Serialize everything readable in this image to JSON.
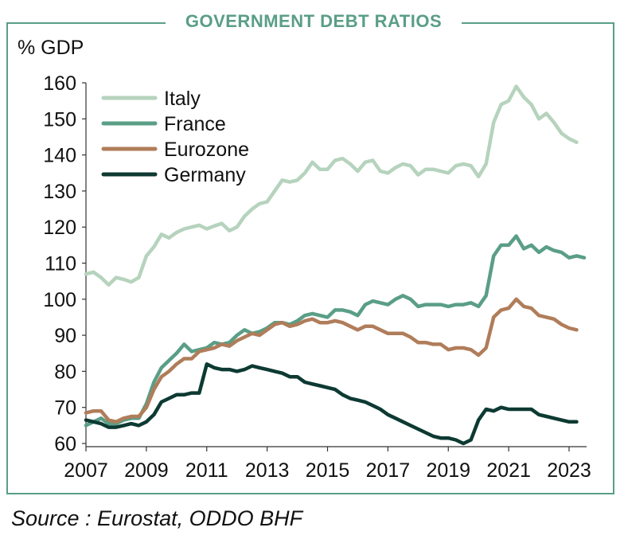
{
  "chart_data": {
    "type": "line",
    "title": "GOVERNMENT DEBT RATIOS",
    "ylabel": "% GDP",
    "xlabel": "",
    "xlim": [
      2007,
      2023.8
    ],
    "ylim": [
      60,
      160
    ],
    "yticks": [
      "160",
      "150",
      "140",
      "130",
      "120",
      "110",
      "100",
      "90",
      "80",
      "70",
      "60"
    ],
    "xticks": [
      "2007",
      "2009",
      "2011",
      "2013",
      "2015",
      "2017",
      "2019",
      "2021",
      "2023"
    ],
    "legend_position": "top-left",
    "series": [
      {
        "name": "Italy",
        "color": "#b6d3bd",
        "x": [
          2007.0,
          2007.25,
          2007.5,
          2007.75,
          2008.0,
          2008.25,
          2008.5,
          2008.75,
          2009.0,
          2009.25,
          2009.5,
          2009.75,
          2010.0,
          2010.25,
          2010.5,
          2010.75,
          2011.0,
          2011.25,
          2011.5,
          2011.75,
          2012.0,
          2012.25,
          2012.5,
          2012.75,
          2013.0,
          2013.25,
          2013.5,
          2013.75,
          2014.0,
          2014.25,
          2014.5,
          2014.75,
          2015.0,
          2015.25,
          2015.5,
          2015.75,
          2016.0,
          2016.25,
          2016.5,
          2016.75,
          2017.0,
          2017.25,
          2017.5,
          2017.75,
          2018.0,
          2018.25,
          2018.5,
          2018.75,
          2019.0,
          2019.25,
          2019.5,
          2019.75,
          2020.0,
          2020.25,
          2020.5,
          2020.75,
          2021.0,
          2021.25,
          2021.5,
          2021.75,
          2022.0,
          2022.25,
          2022.5,
          2022.75,
          2023.0,
          2023.25
        ],
        "values": [
          107,
          107.5,
          106,
          104,
          106,
          105.5,
          104.8,
          106,
          112,
          114.5,
          118,
          117,
          118.5,
          119.5,
          120,
          120.5,
          119.5,
          120.3,
          121,
          119,
          120,
          123,
          125,
          126.5,
          127,
          130,
          133,
          132.5,
          133,
          135,
          138,
          136,
          136,
          138.5,
          139,
          137.5,
          135.5,
          138,
          138.5,
          135.5,
          135,
          136.5,
          137.5,
          137,
          134.5,
          136,
          136,
          135.5,
          135,
          137,
          137.5,
          137,
          134,
          137.5,
          149,
          154,
          155,
          159,
          156,
          154,
          150,
          151.5,
          149,
          146,
          144.5,
          143.5
        ]
      },
      {
        "name": "France",
        "color": "#5a9e86",
        "x": [
          2007.0,
          2007.25,
          2007.5,
          2007.75,
          2008.0,
          2008.25,
          2008.5,
          2008.75,
          2009.0,
          2009.25,
          2009.5,
          2009.75,
          2010.0,
          2010.25,
          2010.5,
          2010.75,
          2011.0,
          2011.25,
          2011.5,
          2011.75,
          2012.0,
          2012.25,
          2012.5,
          2012.75,
          2013.0,
          2013.25,
          2013.5,
          2013.75,
          2014.0,
          2014.25,
          2014.5,
          2014.75,
          2015.0,
          2015.25,
          2015.5,
          2015.75,
          2016.0,
          2016.25,
          2016.5,
          2016.75,
          2017.0,
          2017.25,
          2017.5,
          2017.75,
          2018.0,
          2018.25,
          2018.5,
          2018.75,
          2019.0,
          2019.25,
          2019.5,
          2019.75,
          2020.0,
          2020.25,
          2020.5,
          2020.75,
          2021.0,
          2021.25,
          2021.5,
          2021.75,
          2022.0,
          2022.25,
          2022.5,
          2022.75,
          2023.0,
          2023.25,
          2023.5
        ],
        "values": [
          65,
          66,
          67,
          65.5,
          65.5,
          66.5,
          67,
          67,
          71,
          77,
          81,
          83,
          85,
          87.5,
          85.5,
          86,
          86.5,
          88,
          87.5,
          88,
          90,
          91.5,
          90.5,
          91,
          92,
          93.5,
          93.5,
          93,
          94,
          95.5,
          96,
          95.5,
          95,
          97,
          97,
          96.5,
          95.5,
          98.5,
          99.5,
          99,
          98.5,
          100,
          101,
          100,
          98,
          98.5,
          98.5,
          98.5,
          98,
          98.5,
          98.5,
          99,
          98,
          101,
          112,
          115,
          115,
          117.5,
          114,
          115,
          113,
          114.5,
          113.5,
          113,
          111.5,
          112,
          111.5
        ]
      },
      {
        "name": "Eurozone",
        "color": "#b07d5a",
        "x": [
          2007.0,
          2007.25,
          2007.5,
          2007.75,
          2008.0,
          2008.25,
          2008.5,
          2008.75,
          2009.0,
          2009.25,
          2009.5,
          2009.75,
          2010.0,
          2010.25,
          2010.5,
          2010.75,
          2011.0,
          2011.25,
          2011.5,
          2011.75,
          2012.0,
          2012.25,
          2012.5,
          2012.75,
          2013.0,
          2013.25,
          2013.5,
          2013.75,
          2014.0,
          2014.25,
          2014.5,
          2014.75,
          2015.0,
          2015.25,
          2015.5,
          2015.75,
          2016.0,
          2016.25,
          2016.5,
          2016.75,
          2017.0,
          2017.25,
          2017.5,
          2017.75,
          2018.0,
          2018.25,
          2018.5,
          2018.75,
          2019.0,
          2019.25,
          2019.5,
          2019.75,
          2020.0,
          2020.25,
          2020.5,
          2020.75,
          2021.0,
          2021.25,
          2021.5,
          2021.75,
          2022.0,
          2022.25,
          2022.5,
          2022.75,
          2023.0,
          2023.25
        ],
        "values": [
          68.5,
          69,
          69,
          66.5,
          66,
          67,
          67.5,
          67.5,
          70,
          75,
          78.5,
          80,
          82,
          83.5,
          83.5,
          85.5,
          86,
          86.5,
          87.5,
          87,
          88.5,
          89.5,
          90.5,
          90,
          91.5,
          93,
          93.5,
          92.5,
          93,
          94,
          94.5,
          93.5,
          93.5,
          94,
          93.5,
          92.5,
          91.5,
          92.5,
          92.5,
          91.5,
          90.5,
          90.5,
          90.5,
          89.5,
          88,
          88,
          87.5,
          87.5,
          86,
          86.5,
          86.5,
          86,
          84.5,
          86.5,
          95,
          97,
          97.5,
          100,
          98,
          97.5,
          95.5,
          95,
          94.5,
          93,
          92,
          91.5
        ]
      },
      {
        "name": "Germany",
        "color": "#0d3a33",
        "x": [
          2007.0,
          2007.25,
          2007.5,
          2007.75,
          2008.0,
          2008.25,
          2008.5,
          2008.75,
          2009.0,
          2009.25,
          2009.5,
          2009.75,
          2010.0,
          2010.25,
          2010.5,
          2010.75,
          2011.0,
          2011.25,
          2011.5,
          2011.75,
          2012.0,
          2012.25,
          2012.5,
          2012.75,
          2013.0,
          2013.25,
          2013.5,
          2013.75,
          2014.0,
          2014.25,
          2014.5,
          2014.75,
          2015.0,
          2015.25,
          2015.5,
          2015.75,
          2016.0,
          2016.25,
          2016.5,
          2016.75,
          2017.0,
          2017.25,
          2017.5,
          2017.75,
          2018.0,
          2018.25,
          2018.5,
          2018.75,
          2019.0,
          2019.25,
          2019.5,
          2019.75,
          2020.0,
          2020.25,
          2020.5,
          2020.75,
          2021.0,
          2021.25,
          2021.5,
          2021.75,
          2022.0,
          2022.25,
          2022.5,
          2022.75,
          2023.0,
          2023.25
        ],
        "values": [
          66.5,
          66,
          65.5,
          64.5,
          64.5,
          65,
          65.5,
          65,
          66,
          68,
          71.5,
          72.5,
          73.5,
          73.5,
          74,
          74,
          82,
          81,
          80.5,
          80.5,
          80,
          80.5,
          81.5,
          81,
          80.5,
          80,
          79.5,
          78.5,
          78.5,
          77,
          76.5,
          76,
          75.5,
          75,
          73.5,
          72.5,
          72,
          71.5,
          70.5,
          69.5,
          68,
          67,
          66,
          65,
          64,
          63,
          62,
          61.5,
          61.5,
          61,
          60,
          61,
          66.5,
          69.5,
          69,
          70,
          69.5,
          69.5,
          69.5,
          69.5,
          68,
          67.5,
          67,
          66.5,
          66,
          66
        ]
      }
    ]
  },
  "footer": {
    "source": "Source : Eurostat, ODDO BHF"
  }
}
